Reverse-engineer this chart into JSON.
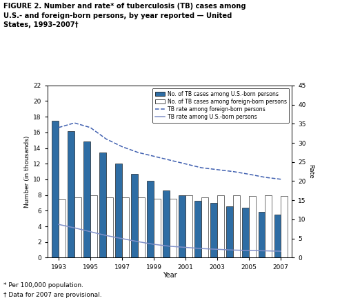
{
  "years": [
    1993,
    1994,
    1995,
    1996,
    1997,
    1998,
    1999,
    2000,
    2001,
    2002,
    2003,
    2004,
    2005,
    2006,
    2007
  ],
  "us_born_cases": [
    17.5,
    16.2,
    14.8,
    13.4,
    12.0,
    10.7,
    9.8,
    8.6,
    8.0,
    7.3,
    7.0,
    6.6,
    6.4,
    5.9,
    5.5
  ],
  "foreign_born_cases": [
    7.4,
    7.7,
    8.0,
    7.7,
    7.7,
    7.7,
    7.5,
    7.5,
    8.0,
    7.7,
    8.0,
    8.0,
    7.9,
    8.0,
    7.9
  ],
  "foreign_born_rate": [
    34.0,
    35.2,
    34.0,
    31.0,
    29.0,
    27.5,
    26.5,
    25.5,
    24.5,
    23.5,
    23.0,
    22.5,
    21.8,
    21.0,
    20.5
  ],
  "us_born_rate": [
    8.7,
    7.8,
    6.8,
    5.8,
    5.0,
    4.2,
    3.5,
    3.0,
    2.7,
    2.4,
    2.2,
    2.0,
    1.9,
    1.8,
    1.7
  ],
  "us_bar_color": "#2e6da4",
  "foreign_bar_color": "#ffffff",
  "rate_foreign_color": "#4060b0",
  "rate_us_color": "#8090c8",
  "title": "FIGURE 2. Number and rate* of tuberculosis (TB) cases among\nU.S.- and foreign-born persons, by year reported — United\nStates, 1993–2007†",
  "ylabel_left": "Number (in thousands)",
  "ylabel_right": "Rate",
  "xlabel": "Year",
  "ylim_left": [
    0,
    22
  ],
  "ylim_right": [
    0,
    45
  ],
  "yticks_left": [
    0,
    2,
    4,
    6,
    8,
    10,
    12,
    14,
    16,
    18,
    20,
    22
  ],
  "yticks_right": [
    0,
    5,
    10,
    15,
    20,
    25,
    30,
    35,
    40,
    45
  ],
  "xtick_years": [
    1993,
    1995,
    1997,
    1999,
    2001,
    2003,
    2005,
    2007
  ],
  "legend_labels": [
    "No. of TB cases among U.S.-born persons",
    "No. of TB cases among foreign-born persons",
    "TB rate among foreign-born persons",
    "TB rate among U.S.-born persons"
  ],
  "footnote1": "* Per 100,000 population.",
  "footnote2": "† Data for 2007 are provisional.",
  "bar_width": 0.42
}
